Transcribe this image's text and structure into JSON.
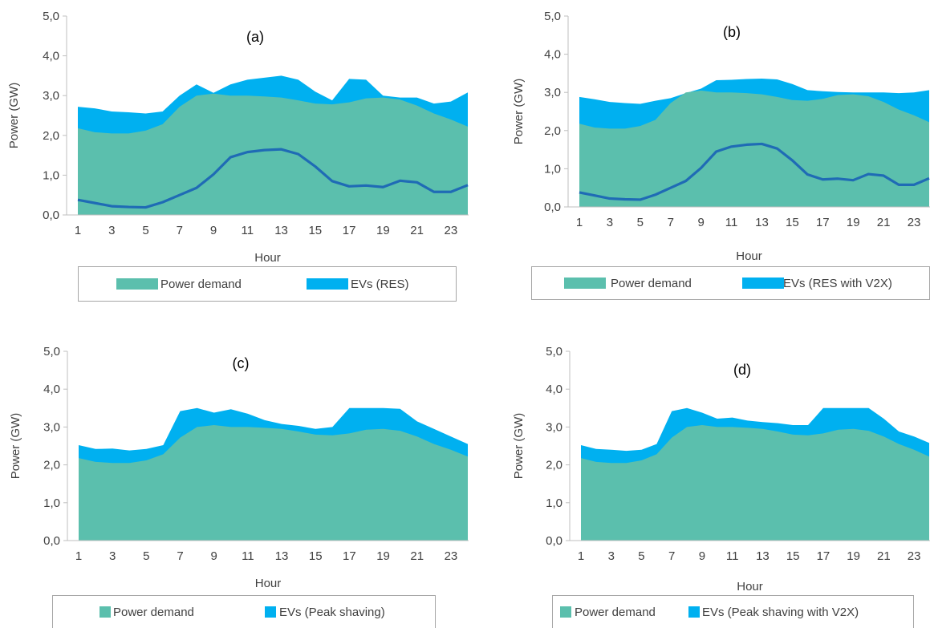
{
  "figure": {
    "colors": {
      "demand": "#5BBFAD",
      "evs": "#00B0F0",
      "line": "#1F6BB5",
      "axis": "#BFBFBF",
      "legend_border": "#A6A6A6",
      "text": "#404040"
    }
  },
  "chart_data": [
    {
      "type": "area",
      "title": "(a)",
      "xlabel": "Hour",
      "ylabel": "Power (GW)",
      "ylim": [
        0,
        5
      ],
      "yticks": [
        "0,0",
        "1,0",
        "2,0",
        "3,0",
        "4,0",
        "5,0"
      ],
      "xticks": [
        "1",
        "3",
        "5",
        "7",
        "9",
        "11",
        "13",
        "15",
        "17",
        "19",
        "21",
        "23"
      ],
      "x": [
        1,
        2,
        3,
        4,
        5,
        6,
        7,
        8,
        9,
        10,
        11,
        12,
        13,
        14,
        15,
        16,
        17,
        18,
        19,
        20,
        21,
        22,
        23,
        24
      ],
      "legend_placement": "bottom",
      "legend": [
        "Power demand",
        "EVs (RES)"
      ],
      "series": [
        {
          "name": "Power demand",
          "kind": "area",
          "values": [
            2.18,
            2.08,
            2.05,
            2.05,
            2.12,
            2.28,
            2.72,
            3.0,
            3.05,
            3.0,
            3.0,
            2.98,
            2.95,
            2.88,
            2.8,
            2.78,
            2.83,
            2.93,
            2.95,
            2.9,
            2.75,
            2.55,
            2.4,
            2.22
          ]
        },
        {
          "name": "EVs (RES)",
          "kind": "area",
          "values": [
            2.72,
            2.68,
            2.6,
            2.58,
            2.55,
            2.6,
            3.0,
            3.28,
            3.07,
            3.28,
            3.4,
            3.45,
            3.5,
            3.4,
            3.1,
            2.88,
            3.42,
            3.4,
            3.0,
            2.95,
            2.95,
            2.8,
            2.85,
            3.08
          ]
        },
        {
          "name": "",
          "kind": "line",
          "values": [
            0.38,
            0.3,
            0.22,
            0.2,
            0.19,
            0.32,
            0.5,
            0.68,
            1.02,
            1.45,
            1.58,
            1.63,
            1.65,
            1.53,
            1.22,
            0.85,
            0.72,
            0.74,
            0.7,
            0.86,
            0.82,
            0.58,
            0.58,
            0.75
          ]
        }
      ]
    },
    {
      "type": "area",
      "title": "(b)",
      "xlabel": "Hour",
      "ylabel": "Power (GW)",
      "ylim": [
        0,
        5
      ],
      "yticks": [
        "0,0",
        "1,0",
        "2,0",
        "3,0",
        "4,0",
        "5,0"
      ],
      "xticks": [
        "1",
        "3",
        "5",
        "7",
        "9",
        "11",
        "13",
        "15",
        "17",
        "19",
        "21",
        "23"
      ],
      "x": [
        1,
        2,
        3,
        4,
        5,
        6,
        7,
        8,
        9,
        10,
        11,
        12,
        13,
        14,
        15,
        16,
        17,
        18,
        19,
        20,
        21,
        22,
        23,
        24
      ],
      "legend_placement": "bottom",
      "legend": [
        "Power demand",
        "EVs (RES with V2X)"
      ],
      "series": [
        {
          "name": "Power demand",
          "kind": "area",
          "values": [
            2.18,
            2.08,
            2.05,
            2.05,
            2.12,
            2.28,
            2.72,
            3.0,
            3.05,
            3.0,
            3.0,
            2.98,
            2.95,
            2.88,
            2.8,
            2.78,
            2.83,
            2.93,
            2.95,
            2.9,
            2.75,
            2.55,
            2.4,
            2.22
          ]
        },
        {
          "name": "EVs (RES with V2X)",
          "kind": "area",
          "values": [
            2.88,
            2.82,
            2.75,
            2.72,
            2.7,
            2.78,
            2.85,
            2.98,
            3.1,
            3.32,
            3.33,
            3.35,
            3.36,
            3.34,
            3.22,
            3.06,
            3.03,
            3.01,
            3.0,
            3.0,
            3.0,
            2.98,
            3.0,
            3.06
          ]
        },
        {
          "name": "",
          "kind": "line",
          "values": [
            0.38,
            0.3,
            0.22,
            0.2,
            0.19,
            0.32,
            0.5,
            0.68,
            1.02,
            1.45,
            1.58,
            1.63,
            1.65,
            1.53,
            1.22,
            0.85,
            0.72,
            0.74,
            0.7,
            0.86,
            0.82,
            0.58,
            0.58,
            0.75
          ]
        }
      ]
    },
    {
      "type": "area",
      "title": "(c)",
      "xlabel": "Hour",
      "ylabel": "Power (GW)",
      "ylim": [
        0,
        5
      ],
      "yticks": [
        "0,0",
        "1,0",
        "2,0",
        "3,0",
        "4,0",
        "5,0"
      ],
      "xticks": [
        "1",
        "3",
        "5",
        "7",
        "9",
        "11",
        "13",
        "15",
        "17",
        "19",
        "21",
        "23"
      ],
      "x": [
        1,
        2,
        3,
        4,
        5,
        6,
        7,
        8,
        9,
        10,
        11,
        12,
        13,
        14,
        15,
        16,
        17,
        18,
        19,
        20,
        21,
        22,
        23,
        24
      ],
      "legend_placement": "bottom",
      "legend": [
        "Power demand",
        "EVs (Peak shaving)"
      ],
      "series": [
        {
          "name": "Power demand",
          "kind": "area",
          "values": [
            2.18,
            2.08,
            2.05,
            2.05,
            2.12,
            2.28,
            2.72,
            3.0,
            3.05,
            3.0,
            3.0,
            2.98,
            2.95,
            2.88,
            2.8,
            2.78,
            2.83,
            2.93,
            2.95,
            2.9,
            2.75,
            2.55,
            2.4,
            2.22
          ]
        },
        {
          "name": "EVs (Peak shaving)",
          "kind": "area",
          "values": [
            2.52,
            2.42,
            2.43,
            2.38,
            2.42,
            2.52,
            3.42,
            3.5,
            3.38,
            3.47,
            3.35,
            3.18,
            3.08,
            3.03,
            2.95,
            3.0,
            3.5,
            3.5,
            3.5,
            3.48,
            3.15,
            2.95,
            2.75,
            2.55
          ]
        }
      ]
    },
    {
      "type": "area",
      "title": "(d)",
      "xlabel": "Hour",
      "ylabel": "Power (GW)",
      "ylim": [
        0,
        5
      ],
      "yticks": [
        "0,0",
        "1,0",
        "2,0",
        "3,0",
        "4,0",
        "5,0"
      ],
      "xticks": [
        "1",
        "3",
        "5",
        "7",
        "9",
        "11",
        "13",
        "15",
        "17",
        "19",
        "21",
        "23"
      ],
      "x": [
        1,
        2,
        3,
        4,
        5,
        6,
        7,
        8,
        9,
        10,
        11,
        12,
        13,
        14,
        15,
        16,
        17,
        18,
        19,
        20,
        21,
        22,
        23,
        24
      ],
      "legend_placement": "bottom",
      "legend": [
        "Power demand",
        "EVs (Peak shaving with V2X)"
      ],
      "series": [
        {
          "name": "Power demand",
          "kind": "area",
          "values": [
            2.18,
            2.08,
            2.05,
            2.05,
            2.12,
            2.28,
            2.72,
            3.0,
            3.05,
            3.0,
            3.0,
            2.98,
            2.95,
            2.88,
            2.8,
            2.78,
            2.83,
            2.93,
            2.95,
            2.9,
            2.75,
            2.55,
            2.4,
            2.22
          ]
        },
        {
          "name": "EVs (Peak shaving with V2X)",
          "kind": "area",
          "values": [
            2.52,
            2.42,
            2.4,
            2.37,
            2.4,
            2.55,
            3.42,
            3.5,
            3.38,
            3.22,
            3.25,
            3.17,
            3.13,
            3.1,
            3.05,
            3.05,
            3.5,
            3.5,
            3.5,
            3.5,
            3.22,
            2.88,
            2.75,
            2.58
          ]
        }
      ]
    }
  ]
}
